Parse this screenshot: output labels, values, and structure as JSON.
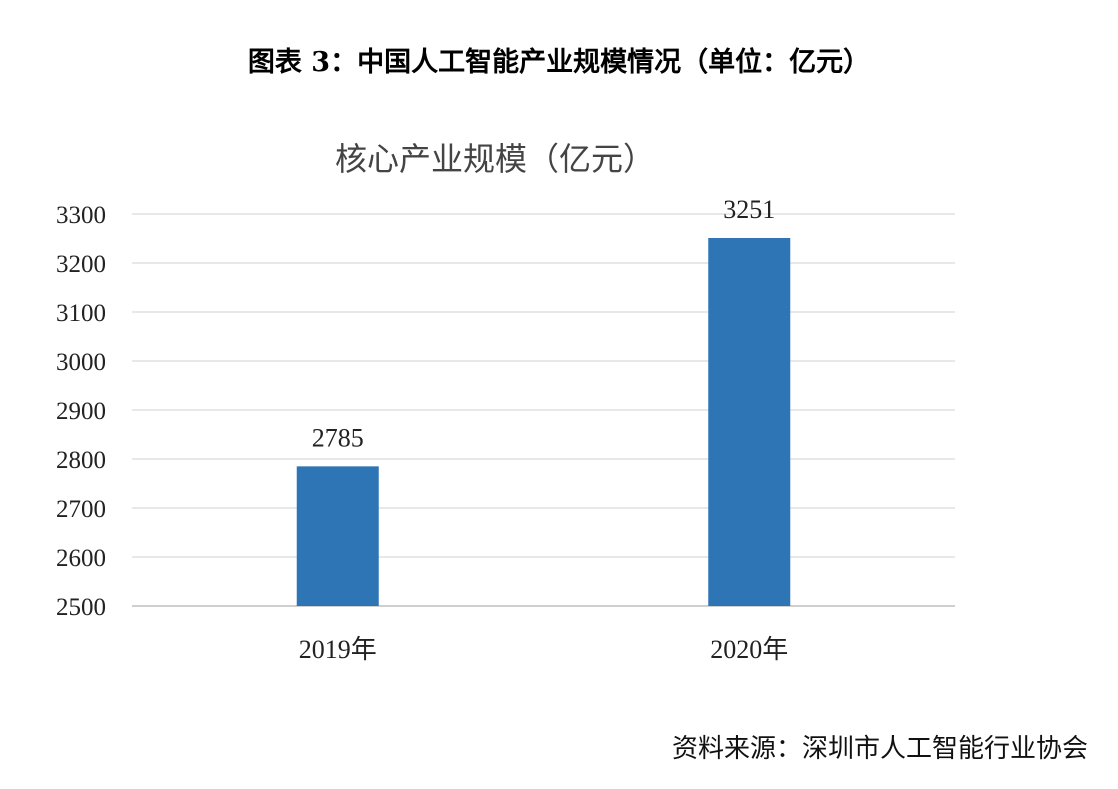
{
  "caption": "图表 3：中国人工智能产业规模情况（单位：亿元）",
  "source": "资料来源：深圳市人工智能行业协会",
  "colors": {
    "bar": "#2E75B6",
    "grid": "#D9D9D9",
    "axis": "#BFBFBF"
  },
  "chart_data": {
    "type": "bar",
    "title": "核心产业规模（亿元）",
    "categories": [
      "2019年",
      "2020年"
    ],
    "values": [
      2785,
      3251
    ],
    "data_labels": [
      "2785",
      "3251"
    ],
    "ylim": [
      2500,
      3300
    ],
    "yticks": [
      2500,
      2600,
      2700,
      2800,
      2900,
      3000,
      3100,
      3200,
      3300
    ],
    "grid": true,
    "xlabel": "",
    "ylabel": ""
  }
}
